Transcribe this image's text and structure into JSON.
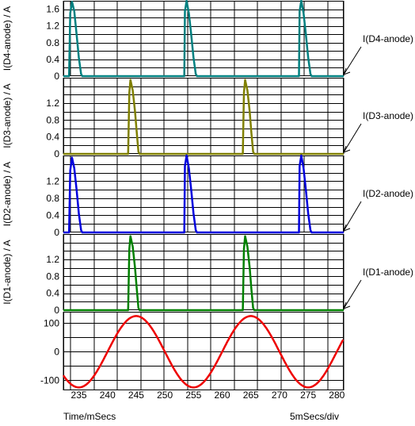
{
  "chart_data": {
    "type": "line",
    "x_unit_label": "Time/mSecs",
    "x_scale_label": "5mSecs/div",
    "xlim": [
      232.3,
      281.2
    ],
    "x_ticks": [
      235,
      240,
      245,
      250,
      255,
      260,
      265,
      270,
      275,
      280
    ],
    "panels": [
      {
        "ylabel": "I(D4-anode) / A",
        "legend": "I(D4-anode)",
        "color": "#008080",
        "ylim": [
          0,
          1.8
        ],
        "y_ticks": [
          0,
          0.4,
          0.8,
          1.2,
          1.6
        ],
        "y_tick_labels": [
          "0",
          "0.4",
          "0.8",
          "1.2",
          "1.6"
        ],
        "x": [
          232.3,
          233.3,
          233.5,
          233.8,
          234.2,
          234.6,
          235.0,
          235.4,
          235.6,
          253.4,
          253.5,
          253.8,
          254.2,
          254.6,
          255.0,
          255.4,
          255.6,
          273.4,
          273.5,
          273.8,
          274.2,
          274.6,
          275.0,
          275.4,
          275.6,
          281.2
        ],
        "y": [
          0,
          0,
          1.5,
          1.78,
          1.55,
          1.0,
          0.45,
          0.05,
          0,
          0,
          1.55,
          1.8,
          1.5,
          1.0,
          0.45,
          0.05,
          0,
          0,
          1.55,
          1.8,
          1.5,
          1.0,
          0.45,
          0.05,
          0,
          0
        ]
      },
      {
        "ylabel": "I(D3-anode) / A",
        "legend": "I(D3-anode)",
        "color": "#808000",
        "ylim": [
          0,
          1.8
        ],
        "y_ticks": [
          0,
          0.4,
          0.8,
          1.2
        ],
        "y_tick_labels": [
          "0",
          "0.4",
          "0.8",
          "1.2"
        ],
        "x": [
          232.3,
          243.6,
          243.8,
          244.0,
          244.4,
          244.8,
          245.1,
          245.4,
          245.6,
          263.6,
          263.8,
          264.0,
          264.4,
          264.8,
          265.1,
          265.4,
          265.6,
          281.2
        ],
        "y": [
          0,
          0,
          1.45,
          1.75,
          1.5,
          1.0,
          0.5,
          0.05,
          0,
          0,
          1.45,
          1.75,
          1.5,
          1.0,
          0.5,
          0.05,
          0,
          0
        ]
      },
      {
        "ylabel": "I(D2-anode) / A",
        "legend": "I(D2-anode)",
        "color": "#0000dd",
        "ylim": [
          0,
          1.8
        ],
        "y_ticks": [
          0,
          0.4,
          0.8,
          1.2
        ],
        "y_tick_labels": [
          "0",
          "0.4",
          "0.8",
          "1.2"
        ],
        "x": [
          232.3,
          233.3,
          233.5,
          233.8,
          234.2,
          234.6,
          235.0,
          235.4,
          235.6,
          253.4,
          253.5,
          253.8,
          254.2,
          254.6,
          255.0,
          255.4,
          255.6,
          273.4,
          273.5,
          273.8,
          274.2,
          274.6,
          275.0,
          275.4,
          275.6,
          281.2
        ],
        "y": [
          0,
          0,
          1.45,
          1.75,
          1.5,
          1.0,
          0.45,
          0.05,
          0,
          0,
          1.55,
          1.8,
          1.5,
          1.0,
          0.45,
          0.05,
          0,
          0,
          1.55,
          1.8,
          1.5,
          1.0,
          0.45,
          0.05,
          0,
          0
        ]
      },
      {
        "ylabel": "I(D1-anode) / A",
        "legend": "I(D1-anode)",
        "color": "#008000",
        "ylim": [
          0,
          1.8
        ],
        "y_ticks": [
          0,
          0.4,
          0.8,
          1.2
        ],
        "y_tick_labels": [
          "0",
          "0.4",
          "0.8",
          "1.2"
        ],
        "x": [
          232.3,
          243.6,
          243.8,
          244.0,
          244.4,
          244.8,
          245.1,
          245.4,
          245.6,
          263.6,
          263.8,
          264.0,
          264.4,
          264.8,
          265.1,
          265.4,
          265.6,
          281.2
        ],
        "y": [
          0,
          0,
          1.45,
          1.75,
          1.5,
          1.0,
          0.5,
          0.05,
          0,
          0,
          1.45,
          1.75,
          1.5,
          1.0,
          0.5,
          0.05,
          0,
          0
        ]
      },
      {
        "ylabel": "",
        "legend": "",
        "color": "#ee0000",
        "ylim": [
          -135,
          140
        ],
        "y_ticks": [
          -100,
          0,
          100
        ],
        "y_tick_labels": [
          "-100",
          "0",
          "100"
        ],
        "sine": {
          "amplitude": 125,
          "period": 20,
          "peak_at": 245
        }
      }
    ]
  }
}
